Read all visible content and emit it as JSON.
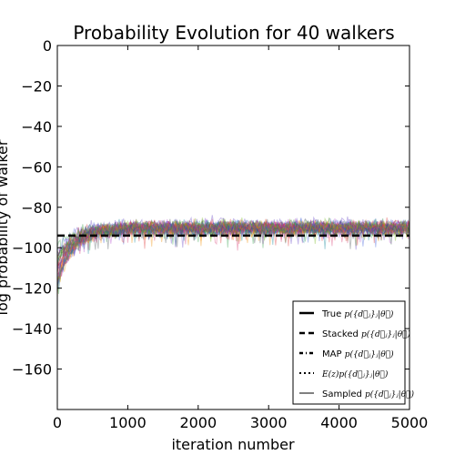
{
  "chart_data": {
    "type": "line",
    "title": "Probability Evolution for 40 walkers",
    "xlabel": "iteration number",
    "ylabel": "log probability of walker",
    "xlim": [
      0,
      5000
    ],
    "ylim": [
      -180,
      0
    ],
    "xticks": [
      0,
      1000,
      2000,
      3000,
      4000,
      5000
    ],
    "yticks": [
      0,
      -20,
      -40,
      -60,
      -80,
      -100,
      -120,
      -140,
      -160
    ],
    "ytick_labels": [
      "0",
      "−20",
      "−40",
      "−60",
      "−80",
      "−100",
      "−120",
      "−140",
      "−160"
    ],
    "grid": false,
    "n_walkers": 40,
    "walker_trace": {
      "start_value_range": [
        -120,
        -100
      ],
      "burn_in_iterations": 700,
      "plateau_mean": -90,
      "plateau_spread": 10,
      "alpha": "low"
    },
    "reference_lines": [
      {
        "name": "Stacked",
        "value": -94,
        "style": "dashed",
        "color": "#000000"
      }
    ],
    "legend": {
      "position": "bottom-right",
      "entries": [
        {
          "label": "True",
          "math": "p({d⃗ⱼ}ⱼ|θ⃗)",
          "style": "solid-thick"
        },
        {
          "label": "Stacked",
          "math": "p({d⃗ⱼ}ⱼ|θ⃗)",
          "style": "dashed"
        },
        {
          "label": "MAP",
          "math": "p({d⃗ⱼ}ⱼ|θ⃗)",
          "style": "dash-dot"
        },
        {
          "label": "",
          "math": "E(z)p({d⃗ⱼ}ⱼ|θ⃗)",
          "style": "dotted"
        },
        {
          "label": "Sampled",
          "math": "p({d⃗ⱼ}ⱼ|θ⃗)",
          "style": "solid-thin"
        }
      ]
    }
  }
}
